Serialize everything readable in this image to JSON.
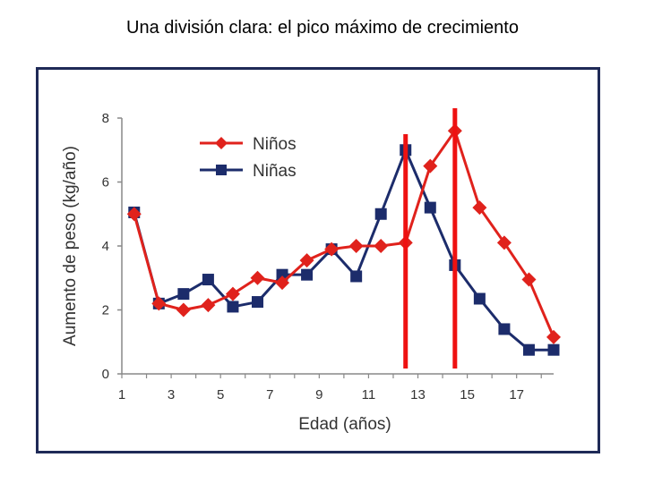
{
  "slide": {
    "title": "Una  división clara: el pico máximo de crecimiento"
  },
  "colors": {
    "frame": "#1f2a57",
    "ninos": "#e0221c",
    "ninas": "#1c2c6b",
    "marker_lines": "#ee1111"
  },
  "chart_data": {
    "type": "line",
    "title": "",
    "xlabel": "Edad (años)",
    "ylabel": "Aumento de peso (kg/año)",
    "xlim": [
      1,
      18.5
    ],
    "ylim": [
      0,
      8
    ],
    "x_ticks": [
      1,
      3,
      5,
      7,
      9,
      11,
      13,
      15,
      17
    ],
    "y_ticks": [
      0,
      2,
      4,
      6,
      8
    ],
    "legend_position": "top-center",
    "series": [
      {
        "name": "Niños",
        "marker": "diamond",
        "color": "#e0221c",
        "x": [
          1.5,
          2.5,
          3.5,
          4.5,
          5.5,
          6.5,
          7.5,
          8.5,
          9.5,
          10.5,
          11.5,
          12.5,
          13.5,
          14.5,
          15.5,
          16.5,
          17.5,
          18.5
        ],
        "y": [
          5.0,
          2.2,
          2.0,
          2.15,
          2.5,
          3.0,
          2.85,
          3.55,
          3.9,
          4.0,
          4.0,
          4.1,
          6.5,
          7.6,
          5.2,
          4.1,
          2.95,
          1.15
        ]
      },
      {
        "name": "Niñas",
        "marker": "square",
        "color": "#1c2c6b",
        "x": [
          1.5,
          2.5,
          3.5,
          4.5,
          5.5,
          6.5,
          7.5,
          8.5,
          9.5,
          10.5,
          11.5,
          12.5,
          13.5,
          14.5,
          15.5,
          16.5,
          17.5,
          18.5
        ],
        "y": [
          5.05,
          2.2,
          2.5,
          2.95,
          2.1,
          2.25,
          3.1,
          3.1,
          3.9,
          3.05,
          5.0,
          7.0,
          5.2,
          3.4,
          2.35,
          1.4,
          0.75,
          0.75
        ]
      }
    ],
    "vertical_markers": [
      12.5,
      14.5
    ]
  }
}
